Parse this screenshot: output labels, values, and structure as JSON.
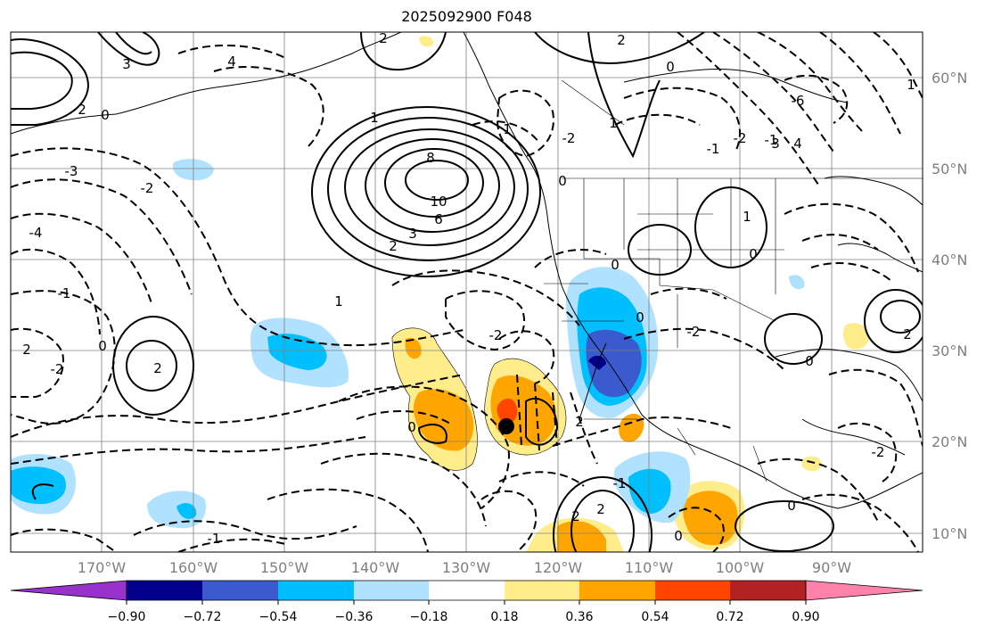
{
  "title": "2025092900 F048",
  "map": {
    "projection": "plate-carree",
    "lon_range": [
      -180,
      -80
    ],
    "lat_range": [
      8,
      65
    ],
    "grid": true,
    "coastlines": true,
    "country_borders": true,
    "state_borders": true,
    "lat_labels": [
      "60°N",
      "50°N",
      "40°N",
      "30°N",
      "20°N",
      "10°N"
    ],
    "lon_labels": [
      "170°W",
      "160°W",
      "150°W",
      "140°W",
      "130°W",
      "120°W",
      "110°W",
      "100°W",
      "90°W"
    ],
    "contour_labels": [
      "8",
      "2",
      "10",
      "6",
      "3",
      "2",
      "4",
      "2",
      "0",
      "1",
      "1",
      "2",
      "0",
      "3",
      "-3",
      "-2",
      "-4",
      "-1",
      "-2",
      "0",
      "2",
      "2",
      "-1",
      "0",
      "0",
      "-2",
      "-2",
      "1",
      "0",
      "2",
      "0",
      "-1",
      "2",
      "0",
      "2",
      "1",
      "0",
      "-2",
      "2",
      "0",
      "0",
      "1",
      "-2",
      "-1",
      "-1",
      "-6",
      "3",
      "4",
      "1",
      "-2"
    ],
    "marker": {
      "lon": -126,
      "lat": 21.8,
      "label": "black-dot"
    }
  },
  "colorbar": {
    "ticks": [
      "−0.90",
      "−0.72",
      "−0.54",
      "−0.36",
      "−0.18",
      "0.18",
      "0.36",
      "0.54",
      "0.72",
      "0.90"
    ],
    "colors": [
      "#9932cc",
      "#00008b",
      "#3a5acd",
      "#00bfff",
      "#b0e2ff",
      "#ffffff",
      "#ffec8b",
      "#ffa500",
      "#ff4500",
      "#b22222",
      "#ff82ab"
    ],
    "extend": "both"
  }
}
